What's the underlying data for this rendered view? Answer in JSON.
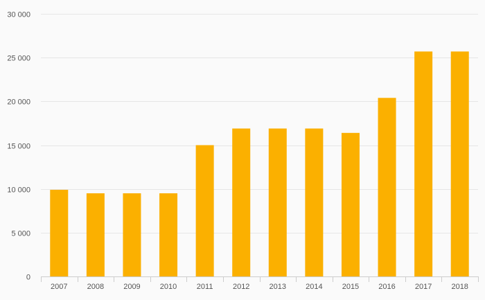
{
  "chart_data": {
    "type": "bar",
    "categories": [
      "2007",
      "2008",
      "2009",
      "2010",
      "2011",
      "2012",
      "2013",
      "2014",
      "2015",
      "2016",
      "2017",
      "2018"
    ],
    "values": [
      9900,
      9500,
      9500,
      9500,
      15000,
      16900,
      16900,
      16900,
      16400,
      20400,
      25700,
      25700
    ],
    "ylim": [
      0,
      30000
    ],
    "yticks": [
      0,
      5000,
      10000,
      15000,
      20000,
      25000,
      30000
    ],
    "ytick_labels": [
      "0",
      "5 000",
      "10 000",
      "15 000",
      "20 000",
      "25 000",
      "30 000"
    ],
    "title": "",
    "xlabel": "",
    "ylabel": "",
    "grid": true,
    "legend": "none",
    "bar_color": "#fbb000"
  }
}
